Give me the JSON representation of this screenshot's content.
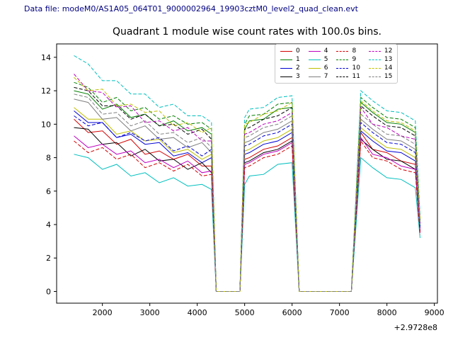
{
  "header": {
    "data_file_label": "Data file: modeM0/AS1A05_064T01_9000002964_19903cztM0_level2_quad_clean.evt"
  },
  "chart_data": {
    "type": "line",
    "title": "Quadrant 1 module wise count rates with 100.0s bins.",
    "xlabel": "",
    "ylabel": "",
    "x_offset_label": "+2.9728e8",
    "grid": false,
    "legend_position": "upper center-right",
    "legend_columns": 4,
    "xlim": [
      1035,
      9065
    ],
    "ylim": [
      -0.7,
      14.8
    ],
    "xticks": [
      2000,
      3000,
      4000,
      5000,
      6000,
      7000,
      8000,
      9000
    ],
    "yticks": [
      0,
      2,
      4,
      6,
      8,
      10,
      12,
      14
    ],
    "x": [
      1400,
      1700,
      2000,
      2300,
      2600,
      2900,
      3200,
      3500,
      3800,
      4100,
      4300,
      4400,
      4600,
      4900,
      5000,
      5100,
      5400,
      5700,
      6000,
      6150,
      6500,
      7000,
      7250,
      7450,
      7700,
      8000,
      8300,
      8600,
      8700
    ],
    "series": [
      {
        "name": "0",
        "color": "#d40000",
        "dash": false,
        "values": [
          10.3,
          9.5,
          9.6,
          8.8,
          9.1,
          8.2,
          8.4,
          7.9,
          8.2,
          7.5,
          7.5,
          0,
          0,
          0,
          7.9,
          8.0,
          8.5,
          8.7,
          9.2,
          0,
          0,
          0,
          0,
          9.5,
          8.5,
          8.3,
          7.8,
          7.6,
          3.9
        ]
      },
      {
        "name": "1",
        "color": "#007f00",
        "dash": false,
        "values": [
          12.0,
          11.8,
          10.9,
          11.2,
          10.4,
          10.6,
          9.9,
          10.2,
          9.6,
          9.8,
          9.4,
          0,
          0,
          0,
          9.7,
          10.2,
          10.3,
          10.9,
          11.0,
          0,
          0,
          0,
          0,
          11.3,
          10.7,
          10.1,
          10.0,
          9.5,
          4.2
        ]
      },
      {
        "name": "2",
        "color": "#0000d4",
        "dash": false,
        "values": [
          10.8,
          10.1,
          10.1,
          9.2,
          9.4,
          8.8,
          8.9,
          8.1,
          8.3,
          7.7,
          8.0,
          0,
          0,
          0,
          8.2,
          8.3,
          8.8,
          9.0,
          9.5,
          0,
          0,
          0,
          0,
          9.6,
          9.0,
          8.4,
          8.3,
          7.8,
          3.8
        ]
      },
      {
        "name": "3",
        "color": "#000000",
        "dash": false,
        "values": [
          9.8,
          9.7,
          8.8,
          8.9,
          8.1,
          8.5,
          7.8,
          7.9,
          7.3,
          7.7,
          7.1,
          0,
          0,
          0,
          7.7,
          7.8,
          8.3,
          8.5,
          9.0,
          0,
          0,
          0,
          0,
          9.1,
          8.5,
          7.9,
          7.8,
          7.3,
          3.6
        ]
      },
      {
        "name": "4",
        "color": "#bf00bf",
        "dash": false,
        "values": [
          9.3,
          8.6,
          8.8,
          8.2,
          8.4,
          7.7,
          7.9,
          7.4,
          7.8,
          7.1,
          7.2,
          0,
          0,
          0,
          7.6,
          7.7,
          8.2,
          8.4,
          8.9,
          0,
          0,
          0,
          0,
          9.2,
          8.2,
          8.0,
          7.5,
          7.3,
          3.5
        ]
      },
      {
        "name": "5",
        "color": "#00bfbf",
        "dash": false,
        "values": [
          8.2,
          8.0,
          7.3,
          7.6,
          6.9,
          7.1,
          6.5,
          6.8,
          6.3,
          6.4,
          6.1,
          0,
          0,
          0,
          6.4,
          6.9,
          7.0,
          7.6,
          7.7,
          0,
          0,
          0,
          0,
          8.0,
          7.4,
          6.8,
          6.7,
          6.2,
          3.2
        ]
      },
      {
        "name": "6",
        "color": "#bfbf00",
        "dash": false,
        "values": [
          11.0,
          10.3,
          10.3,
          9.4,
          9.6,
          9.0,
          9.1,
          8.3,
          8.5,
          7.9,
          8.2,
          0,
          0,
          0,
          8.4,
          8.5,
          9.0,
          9.2,
          9.7,
          0,
          0,
          0,
          0,
          9.8,
          9.2,
          8.6,
          8.5,
          8.0,
          3.9
        ]
      },
      {
        "name": "7",
        "color": "#7f7f7f",
        "dash": false,
        "values": [
          11.5,
          11.3,
          10.3,
          10.4,
          9.6,
          9.9,
          9.1,
          9.2,
          8.6,
          8.9,
          8.3,
          0,
          0,
          0,
          8.9,
          9.0,
          9.5,
          9.7,
          10.2,
          0,
          0,
          0,
          0,
          10.3,
          9.7,
          9.1,
          9.0,
          8.5,
          4.0
        ]
      },
      {
        "name": "8",
        "color": "#d40000",
        "dash": true,
        "values": [
          9.0,
          8.3,
          8.6,
          7.9,
          8.2,
          7.4,
          7.7,
          7.2,
          7.6,
          6.9,
          7.0,
          0,
          0,
          0,
          7.4,
          7.5,
          8.0,
          8.2,
          8.7,
          0,
          0,
          0,
          0,
          9.0,
          8.0,
          7.8,
          7.3,
          7.1,
          3.4
        ]
      },
      {
        "name": "9",
        "color": "#007f00",
        "dash": true,
        "values": [
          12.5,
          12.2,
          11.3,
          11.6,
          10.8,
          11.0,
          10.3,
          10.5,
          10.0,
          10.1,
          9.7,
          0,
          0,
          0,
          10.0,
          10.5,
          10.6,
          11.2,
          11.3,
          0,
          0,
          0,
          0,
          11.6,
          11.0,
          10.4,
          10.3,
          9.8,
          4.3
        ]
      },
      {
        "name": "10",
        "color": "#0000d4",
        "dash": true,
        "values": [
          10.5,
          9.9,
          10.1,
          9.2,
          9.5,
          9.0,
          9.2,
          8.4,
          8.7,
          8.1,
          8.5,
          0,
          0,
          0,
          8.7,
          8.8,
          9.3,
          9.5,
          10.0,
          0,
          0,
          0,
          0,
          10.1,
          9.5,
          8.9,
          8.8,
          8.3,
          3.9
        ]
      },
      {
        "name": "11",
        "color": "#000000",
        "dash": true,
        "values": [
          12.2,
          12.0,
          11.1,
          11.1,
          10.3,
          10.6,
          9.9,
          10.0,
          9.4,
          9.7,
          9.1,
          0,
          0,
          0,
          9.7,
          9.8,
          10.3,
          10.5,
          11.0,
          0,
          0,
          0,
          0,
          11.1,
          10.5,
          9.9,
          9.8,
          9.3,
          4.1
        ]
      },
      {
        "name": "12",
        "color": "#bf00bf",
        "dash": true,
        "values": [
          13.0,
          12.0,
          11.9,
          11.0,
          11.1,
          10.1,
          10.2,
          9.6,
          9.8,
          9.0,
          9.0,
          0,
          0,
          0,
          9.4,
          9.5,
          10.0,
          10.2,
          10.7,
          0,
          0,
          0,
          0,
          11.0,
          10.0,
          9.8,
          9.3,
          9.1,
          4.0
        ]
      },
      {
        "name": "13",
        "color": "#00bfbf",
        "dash": true,
        "values": [
          14.1,
          13.6,
          12.6,
          12.6,
          11.8,
          11.8,
          11.0,
          11.2,
          10.5,
          10.5,
          10.1,
          0,
          0,
          0,
          10.4,
          10.9,
          11.0,
          11.6,
          11.7,
          0,
          0,
          0,
          0,
          12.0,
          11.4,
          10.8,
          10.7,
          10.2,
          4.5
        ]
      },
      {
        "name": "14",
        "color": "#bfbf00",
        "dash": true,
        "values": [
          12.8,
          12.0,
          12.1,
          11.1,
          11.2,
          10.7,
          10.8,
          9.9,
          10.1,
          9.5,
          9.8,
          0,
          0,
          0,
          10.0,
          10.1,
          10.6,
          10.8,
          11.3,
          0,
          0,
          0,
          0,
          11.4,
          10.8,
          10.2,
          10.1,
          9.6,
          4.2
        ]
      },
      {
        "name": "15",
        "color": "#7f7f7f",
        "dash": true,
        "values": [
          11.8,
          11.6,
          10.6,
          10.7,
          9.9,
          10.2,
          9.4,
          9.5,
          8.9,
          9.2,
          8.6,
          0,
          0,
          0,
          9.2,
          9.3,
          9.8,
          10.0,
          10.5,
          0,
          0,
          0,
          0,
          10.6,
          10.0,
          9.4,
          9.3,
          8.8,
          4.0
        ]
      }
    ]
  }
}
